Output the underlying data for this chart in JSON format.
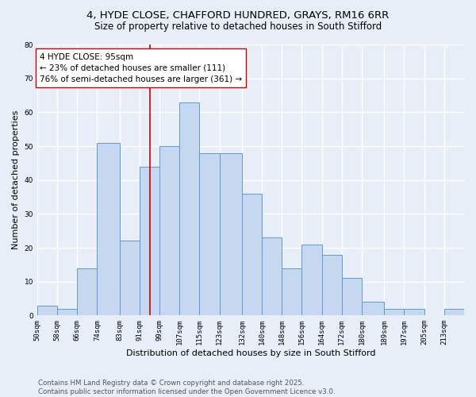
{
  "title_line1": "4, HYDE CLOSE, CHAFFORD HUNDRED, GRAYS, RM16 6RR",
  "title_line2": "Size of property relative to detached houses in South Stifford",
  "xlabel": "Distribution of detached houses by size in South Stifford",
  "ylabel": "Number of detached properties",
  "bin_labels": [
    "50sqm",
    "58sqm",
    "66sqm",
    "74sqm",
    "83sqm",
    "91sqm",
    "99sqm",
    "107sqm",
    "115sqm",
    "123sqm",
    "132sqm",
    "140sqm",
    "148sqm",
    "156sqm",
    "164sqm",
    "172sqm",
    "180sqm",
    "189sqm",
    "197sqm",
    "205sqm",
    "213sqm"
  ],
  "bin_edges": [
    50,
    58,
    66,
    74,
    83,
    91,
    99,
    107,
    115,
    123,
    132,
    140,
    148,
    156,
    164,
    172,
    180,
    189,
    197,
    205,
    213,
    221
  ],
  "bar_heights": [
    3,
    2,
    14,
    51,
    22,
    44,
    50,
    63,
    48,
    48,
    36,
    23,
    14,
    21,
    18,
    11,
    4,
    2,
    2,
    0,
    2
  ],
  "bar_color": "#c5d8f0",
  "bar_edge_color": "#5b9bd5",
  "bg_color": "#e8eef7",
  "grid_color": "#ffffff",
  "vline_x": 95,
  "vline_color": "#cc0000",
  "annotation_text": "4 HYDE CLOSE: 95sqm\n← 23% of detached houses are smaller (111)\n76% of semi-detached houses are larger (361) →",
  "annotation_box_color": "#ffffff",
  "annotation_box_edge": "#cc0000",
  "ylim": [
    0,
    80
  ],
  "yticks": [
    0,
    10,
    20,
    30,
    40,
    50,
    60,
    70,
    80
  ],
  "footer_text": "Contains HM Land Registry data © Crown copyright and database right 2025.\nContains public sector information licensed under the Open Government Licence v3.0.",
  "title_fontsize": 9.5,
  "subtitle_fontsize": 8.5,
  "axis_label_fontsize": 8,
  "tick_fontsize": 6.5,
  "annotation_fontsize": 7.5,
  "footer_fontsize": 6.2
}
